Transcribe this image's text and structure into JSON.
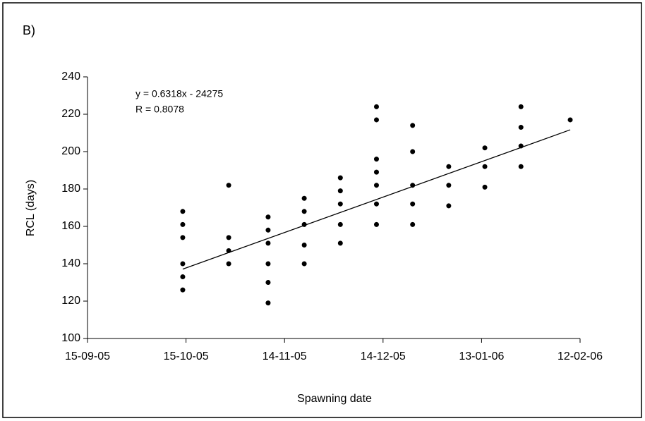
{
  "chart_data": {
    "type": "scatter",
    "panel_label": "B)",
    "x_label": "Spawning date",
    "y_label": "RCL (days)",
    "xlim": [
      38610,
      38760
    ],
    "xticks": [
      {
        "value": 38610,
        "label": "15-09-05"
      },
      {
        "value": 38640,
        "label": "15-10-05"
      },
      {
        "value": 38670,
        "label": "14-11-05"
      },
      {
        "value": 38700,
        "label": "14-12-05"
      },
      {
        "value": 38730,
        "label": "13-01-06"
      },
      {
        "value": 38760,
        "label": "12-02-06"
      }
    ],
    "ylim": [
      100,
      240
    ],
    "yticks": [
      100,
      120,
      140,
      160,
      180,
      200,
      220,
      240
    ],
    "color": "#000000",
    "x": [
      38639,
      38639,
      38639,
      38639,
      38639,
      38639,
      38653,
      38653,
      38653,
      38653,
      38665,
      38665,
      38665,
      38665,
      38665,
      38665,
      38676,
      38676,
      38676,
      38676,
      38676,
      38687,
      38687,
      38687,
      38687,
      38687,
      38698,
      38698,
      38698,
      38698,
      38698,
      38698,
      38698,
      38709,
      38709,
      38709,
      38709,
      38709,
      38720,
      38720,
      38720,
      38731,
      38731,
      38731,
      38742,
      38742,
      38742,
      38742,
      38757
    ],
    "values": [
      168,
      161,
      154,
      140,
      133,
      126,
      182,
      154,
      147,
      140,
      165,
      158,
      151,
      140,
      130,
      119,
      175,
      168,
      161,
      150,
      140,
      186,
      179,
      172,
      161,
      151,
      224,
      217,
      196,
      189,
      182,
      172,
      161,
      214,
      200,
      182,
      172,
      161,
      192,
      182,
      171,
      202,
      192,
      181,
      224,
      213,
      203,
      192,
      217
    ],
    "trendline": {
      "label": "y = 0.6318x - 24275",
      "slope": 0.6318,
      "intercept": -24275
    },
    "r_label": "R = 0.8078"
  }
}
